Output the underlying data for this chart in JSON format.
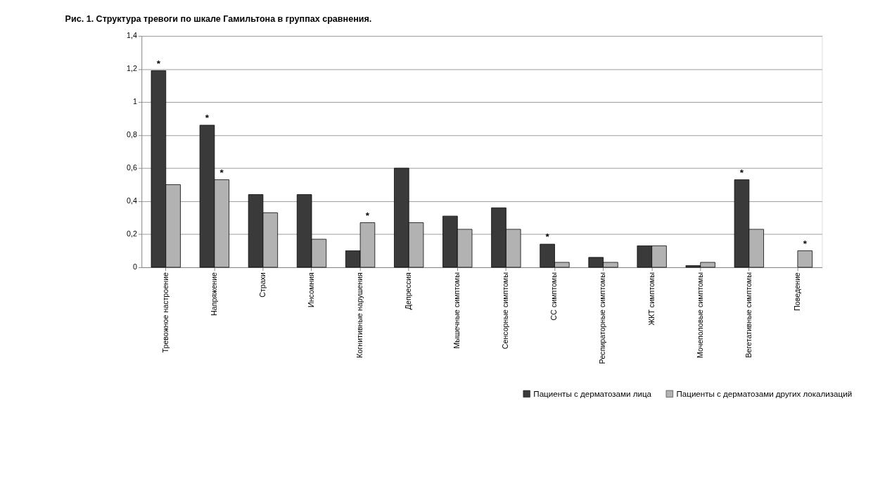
{
  "chart_data": {
    "type": "bar",
    "title": "Рис. 1. Структура тревоги по шкале Гамильтона в группах сравнения.",
    "categories": [
      "Тревожное настроение",
      "Напряжение",
      "Страхи",
      "Инсомния",
      "Когнитивные нарушения",
      "Депрессия",
      "Мышечные симптомы",
      "Сенсорные симптомы",
      "СС симптомы",
      "Респираторные симптомы",
      "ЖКТ симптомы",
      "Мочеполовые симптомы",
      "Вегетативные симптомы",
      "Поведение"
    ],
    "series": [
      {
        "name": "Пациенты с дерматозами лица",
        "color": "#3a3a3a",
        "values": [
          1.19,
          0.86,
          0.44,
          0.44,
          0.1,
          0.6,
          0.31,
          0.36,
          0.14,
          0.06,
          0.13,
          0.01,
          0.53,
          null
        ]
      },
      {
        "name": "Пациенты с дерматозами других локализаций",
        "color": "#b2b2b2",
        "values": [
          0.5,
          0.53,
          0.33,
          0.17,
          0.27,
          0.27,
          0.23,
          0.23,
          0.03,
          0.03,
          0.13,
          0.03,
          0.23,
          0.1
        ]
      }
    ],
    "ylim": [
      0,
      1.4
    ],
    "yticks": [
      0,
      {
        "value": 0.2,
        "label": "0,2"
      },
      {
        "value": 0.4,
        "label": "0,4"
      },
      {
        "value": 0.6,
        "label": "0,6"
      },
      {
        "value": 0.8,
        "label": "0,8"
      },
      1,
      {
        "value": 1.2,
        "label": "1,2"
      },
      {
        "value": 1.4,
        "label": "1,4"
      }
    ],
    "grid": "y",
    "legend": "bottom right",
    "annotations": [
      {
        "text": "*",
        "x": "Тревожное настроение",
        "y": 1.19
      },
      {
        "text": "*",
        "x": "Напряжение",
        "y": 0.86
      },
      {
        "text": "*",
        "x": "Напряжение",
        "y": 0.53
      },
      {
        "text": "*",
        "x": "Когнитивные нарушения",
        "y": 0.27
      },
      {
        "text": "*",
        "x": "СС симптомы",
        "y": 0.14
      },
      {
        "text": "*",
        "x": "Вегетативные симптомы",
        "y": 0.53
      },
      {
        "text": "*",
        "x": "Поведение",
        "y": 0.1
      }
    ]
  }
}
